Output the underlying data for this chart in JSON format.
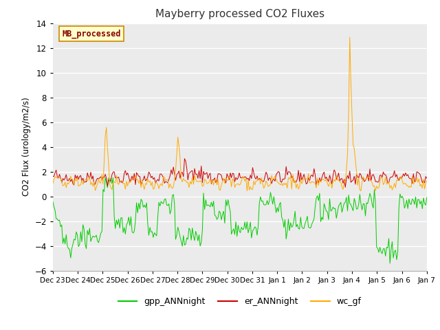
{
  "title": "Mayberry processed CO2 Fluxes",
  "ylabel": "CO2 Flux (urology/m2/s)",
  "ylim": [
    -6,
    14
  ],
  "yticks": [
    -6,
    -4,
    -2,
    0,
    2,
    4,
    6,
    8,
    10,
    12,
    14
  ],
  "bg_color": "#ebebeb",
  "fig_color": "#ffffff",
  "text_box_label": "MB_processed",
  "text_box_facecolor": "#ffffcc",
  "text_box_edgecolor": "#cc8800",
  "text_box_textcolor": "#880000",
  "line_colors": {
    "gpp_ANNnight": "#00cc00",
    "er_ANNnight": "#cc0000",
    "wc_gf": "#ffaa00"
  },
  "legend_labels": [
    "gpp_ANNnight",
    "er_ANNnight",
    "wc_gf"
  ],
  "x_tick_labels": [
    "Dec 23",
    "Dec 24",
    "Dec 25",
    "Dec 26",
    "Dec 27",
    "Dec 28",
    "Dec 29",
    "Dec 30",
    "Dec 31",
    "Jan 1",
    "Jan 2",
    "Jan 3",
    "Jan 4",
    "Jan 5",
    "Jan 6",
    "Jan 7"
  ],
  "n_points": 336,
  "seed": 42
}
